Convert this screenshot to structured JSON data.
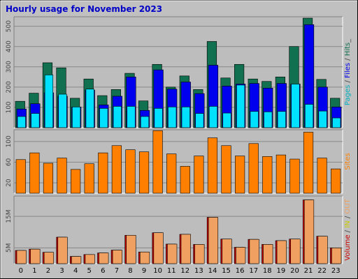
{
  "title": "Hourly usage for November 2023",
  "colors": {
    "background": "#c0c0c0",
    "plot_bg": "#bdbdbd",
    "hits": "#107050",
    "files": "#0000ee",
    "pages": "#00e0ff",
    "sites": "#ff8000",
    "kbytes_in": "#cc0000",
    "kbytes_out": "#f0a060",
    "title": "#0000c8"
  },
  "chart_data": [
    {
      "type": "bar",
      "panel": "top",
      "x": [
        "0",
        "1",
        "2",
        "3",
        "4",
        "5",
        "6",
        "7",
        "8",
        "9",
        "10",
        "11",
        "12",
        "13",
        "14",
        "15",
        "16",
        "17",
        "18",
        "19",
        "20",
        "21",
        "22",
        "23"
      ],
      "ylim": [
        0,
        540
      ],
      "y_ticks": [
        "100",
        "200",
        "300",
        "400",
        "500"
      ],
      "legend": [
        {
          "label": "Pages",
          "color": "#00b0c0"
        },
        {
          "label": " / ",
          "color": "#444444"
        },
        {
          "label": "Files",
          "color": "#0000ee"
        },
        {
          "label": " / ",
          "color": "#444444"
        },
        {
          "label": "Hits",
          "color": "#107050"
        },
        {
          "label": "_",
          "color": "#444444"
        }
      ],
      "series": [
        {
          "name": "Hits",
          "values": [
            130,
            170,
            320,
            295,
            145,
            240,
            158,
            188,
            268,
            132,
            312,
            200,
            255,
            188,
            425,
            245,
            312,
            240,
            228,
            250,
            400,
            540,
            238,
            145
          ]
        },
        {
          "name": "Files",
          "values": [
            92,
            118,
            172,
            155,
            102,
            185,
            112,
            155,
            250,
            85,
            285,
            190,
            225,
            168,
            308,
            205,
            215,
            218,
            195,
            218,
            215,
            508,
            200,
            102
          ]
        },
        {
          "name": "Pages",
          "values": [
            55,
            70,
            260,
            165,
            102,
            190,
            95,
            105,
            105,
            55,
            95,
            102,
            102,
            70,
            105,
            72,
            210,
            80,
            78,
            80,
            215,
            115,
            82,
            48
          ]
        }
      ]
    },
    {
      "type": "bar",
      "panel": "middle",
      "x": [
        "0",
        "1",
        "2",
        "3",
        "4",
        "5",
        "6",
        "7",
        "8",
        "9",
        "10",
        "11",
        "12",
        "13",
        "14",
        "15",
        "16",
        "17",
        "18",
        "19",
        "20",
        "21",
        "22",
        "23"
      ],
      "ylim": [
        0,
        120
      ],
      "y_ticks": [
        "20",
        "60",
        "100"
      ],
      "legend": [
        {
          "label": "Sites",
          "color": "#ff8000"
        }
      ],
      "series": [
        {
          "name": "Sites",
          "values": [
            65,
            78,
            58,
            68,
            46,
            57,
            78,
            92,
            84,
            80,
            121,
            76,
            52,
            72,
            107,
            92,
            72,
            96,
            71,
            74,
            66,
            118,
            68,
            47
          ]
        }
      ]
    },
    {
      "type": "bar",
      "panel": "bottom",
      "x": [
        "0",
        "1",
        "2",
        "3",
        "4",
        "5",
        "6",
        "7",
        "8",
        "9",
        "10",
        "11",
        "12",
        "13",
        "14",
        "15",
        "16",
        "17",
        "18",
        "19",
        "20",
        "21",
        "22",
        "23"
      ],
      "ylim": [
        0,
        21
      ],
      "y_ticks": [
        "5M",
        "15M"
      ],
      "legend": [
        {
          "label": "Volume",
          "color": "#cc0000"
        },
        {
          "label": " / ",
          "color": "#444444"
        },
        {
          "label": "IN",
          "color": "#cccc00"
        },
        {
          "label": " / ",
          "color": "#444444"
        },
        {
          "label": "OUT",
          "color": "#f0a060"
        }
      ],
      "series": [
        {
          "name": "Volume",
          "values": [
            4.2,
            4.6,
            3.6,
            8.4,
            2.3,
            2.9,
            3.4,
            4.3,
            9.0,
            3.7,
            9.8,
            6.2,
            9.3,
            6.1,
            14.7,
            7.8,
            5.2,
            7.7,
            6.1,
            7.3,
            7.8,
            20.2,
            8.7,
            5.0
          ]
        },
        {
          "name": "OUT",
          "values": [
            4.2,
            4.6,
            3.6,
            8.4,
            2.3,
            2.9,
            3.4,
            4.3,
            9.0,
            3.7,
            9.8,
            6.2,
            9.3,
            6.1,
            14.7,
            7.8,
            5.2,
            7.7,
            6.1,
            7.3,
            7.8,
            20.2,
            8.7,
            5.0
          ]
        }
      ]
    }
  ]
}
